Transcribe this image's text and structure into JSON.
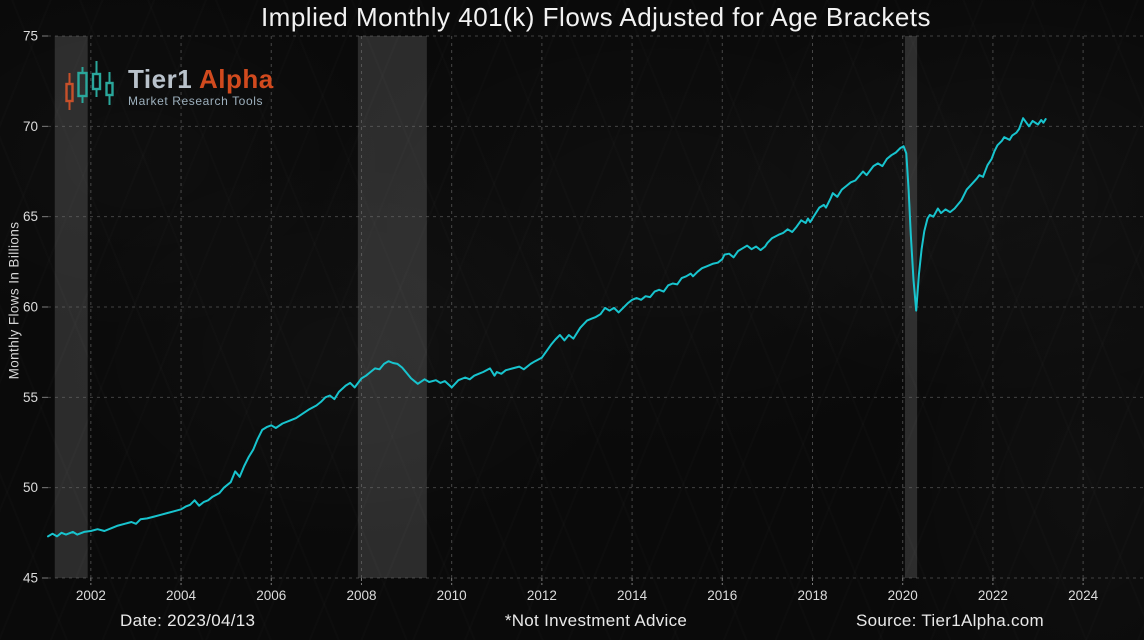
{
  "title": "Implied Monthly 401(k) Flows Adjusted for Age Brackets",
  "logo": {
    "brand_primary": "Tier1",
    "brand_secondary": "Alpha",
    "tagline": "Market Research Tools"
  },
  "footer": {
    "date_label": "Date: 2023/04/13",
    "disclaimer": "*Not Investment Advice",
    "source": "Source: Tier1Alpha.com"
  },
  "colors": {
    "line": "#18c4ce",
    "background": "#0a0a0a",
    "grid": "#787878",
    "tick": "#999999",
    "band": "rgba(255,255,255,0.14)",
    "title_text": "#f2f2f2",
    "brand_primary": "#b9c2cb",
    "brand_secondary": "#d14a1e",
    "brand_tagline": "#9db0bd",
    "candle_orange": "#c7502a",
    "candle_teal": "#2aa79b"
  },
  "chart_data": {
    "type": "line",
    "title": "Implied Monthly 401(k) Flows Adjusted for Age Brackets",
    "xlabel": "",
    "ylabel": "Monthly Flows In Billions",
    "x_ticks": [
      2002,
      2004,
      2006,
      2008,
      2010,
      2012,
      2014,
      2016,
      2018,
      2020,
      2022,
      2024
    ],
    "y_ticks": [
      45,
      50,
      55,
      60,
      65,
      70,
      75
    ],
    "x_range": [
      2001.05,
      2025.35
    ],
    "y_range": [
      45,
      75
    ],
    "grid": true,
    "legend": "none",
    "recession_bands": [
      [
        2001.2,
        2001.93
      ],
      [
        2007.92,
        2009.45
      ],
      [
        2020.05,
        2020.32
      ]
    ],
    "series": [
      {
        "name": "Implied monthly 401(k) flows ($B)",
        "points": [
          [
            2001.05,
            47.3
          ],
          [
            2001.15,
            47.45
          ],
          [
            2001.25,
            47.3
          ],
          [
            2001.35,
            47.5
          ],
          [
            2001.45,
            47.4
          ],
          [
            2001.6,
            47.55
          ],
          [
            2001.7,
            47.4
          ],
          [
            2001.85,
            47.55
          ],
          [
            2002.0,
            47.6
          ],
          [
            2002.15,
            47.7
          ],
          [
            2002.3,
            47.6
          ],
          [
            2002.45,
            47.75
          ],
          [
            2002.6,
            47.9
          ],
          [
            2002.75,
            48.0
          ],
          [
            2002.9,
            48.1
          ],
          [
            2003.0,
            48.0
          ],
          [
            2003.1,
            48.25
          ],
          [
            2003.25,
            48.3
          ],
          [
            2003.4,
            48.4
          ],
          [
            2003.55,
            48.5
          ],
          [
            2003.7,
            48.6
          ],
          [
            2003.85,
            48.7
          ],
          [
            2004.0,
            48.8
          ],
          [
            2004.1,
            48.95
          ],
          [
            2004.2,
            49.05
          ],
          [
            2004.3,
            49.3
          ],
          [
            2004.4,
            49.0
          ],
          [
            2004.5,
            49.2
          ],
          [
            2004.6,
            49.3
          ],
          [
            2004.7,
            49.5
          ],
          [
            2004.85,
            49.7
          ],
          [
            2004.95,
            50.0
          ],
          [
            2005.1,
            50.3
          ],
          [
            2005.2,
            50.9
          ],
          [
            2005.3,
            50.6
          ],
          [
            2005.4,
            51.2
          ],
          [
            2005.5,
            51.7
          ],
          [
            2005.6,
            52.1
          ],
          [
            2005.7,
            52.7
          ],
          [
            2005.8,
            53.2
          ],
          [
            2005.9,
            53.35
          ],
          [
            2006.0,
            53.45
          ],
          [
            2006.1,
            53.3
          ],
          [
            2006.25,
            53.55
          ],
          [
            2006.4,
            53.7
          ],
          [
            2006.55,
            53.85
          ],
          [
            2006.7,
            54.1
          ],
          [
            2006.85,
            54.35
          ],
          [
            2007.0,
            54.55
          ],
          [
            2007.1,
            54.75
          ],
          [
            2007.2,
            55.0
          ],
          [
            2007.3,
            55.1
          ],
          [
            2007.4,
            54.9
          ],
          [
            2007.5,
            55.3
          ],
          [
            2007.65,
            55.65
          ],
          [
            2007.75,
            55.8
          ],
          [
            2007.85,
            55.55
          ],
          [
            2008.0,
            56.05
          ],
          [
            2008.1,
            56.2
          ],
          [
            2008.2,
            56.4
          ],
          [
            2008.3,
            56.6
          ],
          [
            2008.4,
            56.55
          ],
          [
            2008.5,
            56.85
          ],
          [
            2008.6,
            57.0
          ],
          [
            2008.7,
            56.9
          ],
          [
            2008.8,
            56.85
          ],
          [
            2008.9,
            56.65
          ],
          [
            2009.0,
            56.35
          ],
          [
            2009.1,
            56.05
          ],
          [
            2009.25,
            55.75
          ],
          [
            2009.4,
            56.0
          ],
          [
            2009.5,
            55.85
          ],
          [
            2009.65,
            55.95
          ],
          [
            2009.75,
            55.8
          ],
          [
            2009.85,
            55.9
          ],
          [
            2010.0,
            55.55
          ],
          [
            2010.15,
            55.95
          ],
          [
            2010.3,
            56.1
          ],
          [
            2010.4,
            56.0
          ],
          [
            2010.5,
            56.2
          ],
          [
            2010.6,
            56.3
          ],
          [
            2010.7,
            56.4
          ],
          [
            2010.85,
            56.6
          ],
          [
            2010.95,
            56.2
          ],
          [
            2011.0,
            56.4
          ],
          [
            2011.1,
            56.3
          ],
          [
            2011.2,
            56.5
          ],
          [
            2011.35,
            56.6
          ],
          [
            2011.5,
            56.7
          ],
          [
            2011.6,
            56.55
          ],
          [
            2011.75,
            56.85
          ],
          [
            2011.85,
            57.0
          ],
          [
            2012.0,
            57.2
          ],
          [
            2012.1,
            57.55
          ],
          [
            2012.2,
            57.9
          ],
          [
            2012.3,
            58.2
          ],
          [
            2012.4,
            58.45
          ],
          [
            2012.5,
            58.15
          ],
          [
            2012.6,
            58.45
          ],
          [
            2012.7,
            58.25
          ],
          [
            2012.85,
            58.85
          ],
          [
            2013.0,
            59.25
          ],
          [
            2013.1,
            59.35
          ],
          [
            2013.2,
            59.45
          ],
          [
            2013.3,
            59.6
          ],
          [
            2013.4,
            59.95
          ],
          [
            2013.5,
            59.8
          ],
          [
            2013.6,
            59.95
          ],
          [
            2013.7,
            59.7
          ],
          [
            2013.8,
            59.95
          ],
          [
            2013.9,
            60.2
          ],
          [
            2014.0,
            60.4
          ],
          [
            2014.1,
            60.5
          ],
          [
            2014.2,
            60.4
          ],
          [
            2014.3,
            60.6
          ],
          [
            2014.4,
            60.55
          ],
          [
            2014.5,
            60.85
          ],
          [
            2014.6,
            60.95
          ],
          [
            2014.7,
            60.85
          ],
          [
            2014.8,
            61.2
          ],
          [
            2014.9,
            61.3
          ],
          [
            2015.0,
            61.25
          ],
          [
            2015.1,
            61.6
          ],
          [
            2015.2,
            61.7
          ],
          [
            2015.3,
            61.85
          ],
          [
            2015.35,
            61.7
          ],
          [
            2015.45,
            61.95
          ],
          [
            2015.55,
            62.15
          ],
          [
            2015.65,
            62.25
          ],
          [
            2015.8,
            62.4
          ],
          [
            2015.9,
            62.45
          ],
          [
            2016.0,
            62.65
          ],
          [
            2016.05,
            62.9
          ],
          [
            2016.15,
            62.95
          ],
          [
            2016.25,
            62.75
          ],
          [
            2016.35,
            63.1
          ],
          [
            2016.45,
            63.25
          ],
          [
            2016.55,
            63.4
          ],
          [
            2016.65,
            63.2
          ],
          [
            2016.75,
            63.35
          ],
          [
            2016.85,
            63.15
          ],
          [
            2016.95,
            63.35
          ],
          [
            2017.0,
            63.55
          ],
          [
            2017.1,
            63.8
          ],
          [
            2017.25,
            64.0
          ],
          [
            2017.35,
            64.1
          ],
          [
            2017.45,
            64.3
          ],
          [
            2017.55,
            64.15
          ],
          [
            2017.65,
            64.45
          ],
          [
            2017.75,
            64.8
          ],
          [
            2017.85,
            64.65
          ],
          [
            2017.9,
            64.9
          ],
          [
            2017.95,
            64.7
          ],
          [
            2018.05,
            65.1
          ],
          [
            2018.15,
            65.5
          ],
          [
            2018.25,
            65.65
          ],
          [
            2018.3,
            65.5
          ],
          [
            2018.4,
            66.0
          ],
          [
            2018.45,
            66.3
          ],
          [
            2018.55,
            66.1
          ],
          [
            2018.65,
            66.5
          ],
          [
            2018.75,
            66.7
          ],
          [
            2018.85,
            66.9
          ],
          [
            2018.95,
            67.0
          ],
          [
            2019.05,
            67.3
          ],
          [
            2019.12,
            67.5
          ],
          [
            2019.2,
            67.3
          ],
          [
            2019.35,
            67.8
          ],
          [
            2019.45,
            67.95
          ],
          [
            2019.55,
            67.8
          ],
          [
            2019.65,
            68.2
          ],
          [
            2019.75,
            68.4
          ],
          [
            2019.85,
            68.55
          ],
          [
            2019.95,
            68.8
          ],
          [
            2020.02,
            68.9
          ],
          [
            2020.08,
            68.5
          ],
          [
            2020.13,
            66.5
          ],
          [
            2020.18,
            64.0
          ],
          [
            2020.24,
            61.5
          ],
          [
            2020.3,
            59.8
          ],
          [
            2020.36,
            61.8
          ],
          [
            2020.42,
            63.2
          ],
          [
            2020.48,
            64.2
          ],
          [
            2020.55,
            64.9
          ],
          [
            2020.6,
            65.1
          ],
          [
            2020.68,
            65.0
          ],
          [
            2020.78,
            65.45
          ],
          [
            2020.85,
            65.2
          ],
          [
            2020.95,
            65.4
          ],
          [
            2021.05,
            65.25
          ],
          [
            2021.15,
            65.45
          ],
          [
            2021.3,
            65.9
          ],
          [
            2021.42,
            66.5
          ],
          [
            2021.55,
            66.85
          ],
          [
            2021.64,
            67.1
          ],
          [
            2021.7,
            67.3
          ],
          [
            2021.78,
            67.2
          ],
          [
            2021.88,
            67.85
          ],
          [
            2021.97,
            68.2
          ],
          [
            2022.03,
            68.6
          ],
          [
            2022.1,
            68.95
          ],
          [
            2022.2,
            69.2
          ],
          [
            2022.25,
            69.4
          ],
          [
            2022.37,
            69.25
          ],
          [
            2022.43,
            69.5
          ],
          [
            2022.52,
            69.65
          ],
          [
            2022.58,
            69.85
          ],
          [
            2022.67,
            70.45
          ],
          [
            2022.8,
            70.0
          ],
          [
            2022.88,
            70.3
          ],
          [
            2023.0,
            70.1
          ],
          [
            2023.07,
            70.35
          ],
          [
            2023.12,
            70.2
          ],
          [
            2023.17,
            70.4
          ]
        ]
      }
    ]
  }
}
